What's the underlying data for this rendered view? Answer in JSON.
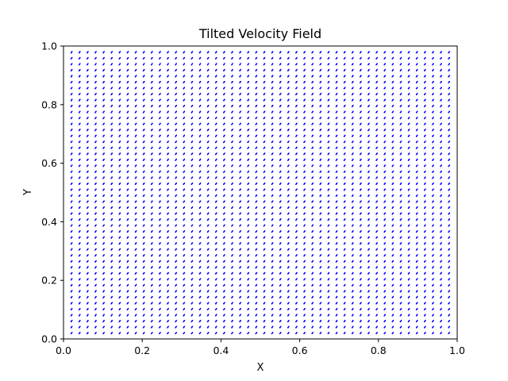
{
  "chart_data": {
    "type": "quiver",
    "title": "Tilted Velocity Field",
    "xlabel": "X",
    "ylabel": "Y",
    "xlim": [
      0,
      1
    ],
    "ylim": [
      0,
      1
    ],
    "xticks": [
      "0.0",
      "0.2",
      "0.4",
      "0.6",
      "0.8",
      "1.0"
    ],
    "yticks": [
      "0.0",
      "0.2",
      "0.4",
      "0.6",
      "0.8",
      "1.0"
    ],
    "grid": false,
    "arrow_color": "#0000ff",
    "x_grid": {
      "start": 0.0204,
      "step": 0.0204,
      "count": 49
    },
    "y_grid": {
      "start": 0.02,
      "step": 0.0204,
      "count": 48
    }
  }
}
